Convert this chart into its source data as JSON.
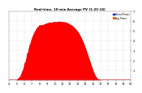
{
  "title": "Real-time, 10-min Average PV (1-25-14)",
  "legend_actual": "Actual Power",
  "legend_average": "Avg Power",
  "bg_color": "#ffffff",
  "plot_bg": "#ffffff",
  "grid_color": "#aaaaaa",
  "bar_color": "#ff0000",
  "avg_color": "#cc0000",
  "title_color": "#000000",
  "label_color": "#000000",
  "legend_color_1": "#0000ff",
  "legend_color_2": "#ff6600",
  "xlim": [
    0,
    144
  ],
  "ylim": [
    0,
    3.5
  ],
  "ytick_labels": [
    "1",
    "2",
    "3",
    "4",
    "5",
    "6",
    "7"
  ],
  "yticks": [
    0.5,
    1.0,
    1.5,
    2.0,
    2.5,
    3.0,
    3.5
  ],
  "values": [
    0.0,
    0.0,
    0.0,
    0.0,
    0.0,
    0.0,
    0.0,
    0.0,
    0.0,
    0.0,
    0.02,
    0.05,
    0.1,
    0.15,
    0.22,
    0.3,
    0.4,
    0.52,
    0.65,
    0.8,
    0.95,
    1.1,
    1.28,
    1.45,
    1.62,
    1.78,
    1.92,
    2.05,
    2.18,
    2.28,
    2.38,
    2.45,
    2.52,
    2.58,
    2.62,
    2.65,
    2.68,
    2.7,
    2.72,
    2.74,
    2.76,
    2.78,
    2.8,
    2.82,
    2.83,
    2.84,
    2.85,
    2.86,
    2.87,
    2.88,
    2.89,
    2.9,
    2.91,
    2.92,
    2.92,
    2.93,
    2.93,
    2.93,
    2.94,
    2.94,
    2.94,
    2.94,
    2.93,
    2.93,
    2.92,
    2.92,
    2.91,
    2.9,
    2.88,
    2.87,
    2.85,
    2.83,
    2.8,
    2.78,
    2.75,
    2.72,
    2.68,
    2.65,
    2.6,
    2.55,
    2.5,
    2.44,
    2.38,
    2.3,
    2.22,
    2.14,
    2.05,
    1.95,
    1.85,
    1.74,
    1.62,
    1.5,
    1.38,
    1.25,
    1.12,
    0.98,
    0.85,
    0.72,
    0.6,
    0.48,
    0.38,
    0.28,
    0.2,
    0.13,
    0.08,
    0.04,
    0.02,
    0.01,
    0.0,
    0.0,
    0.0,
    0.0,
    0.0,
    0.0,
    0.0,
    0.0,
    0.0,
    0.0,
    0.0,
    0.0,
    0.0,
    0.0,
    0.0,
    0.0,
    0.0,
    0.0,
    0.0,
    0.0,
    0.0,
    0.0,
    0.0,
    0.0,
    0.0,
    0.0,
    0.0,
    0.0,
    0.0,
    0.0,
    0.0,
    0.0,
    0.0,
    0.0,
    0.0,
    0.0
  ],
  "spiky_extra": [
    0.0,
    0.0,
    0.0,
    0.0,
    0.0,
    0.0,
    0.0,
    0.0,
    0.0,
    0.0,
    0.05,
    0.08,
    0.12,
    0.1,
    0.15,
    0.2,
    0.18,
    0.25,
    0.3,
    0.28,
    0.22,
    0.3,
    0.35,
    0.25,
    0.2,
    0.18,
    0.15,
    0.12,
    0.1,
    0.15,
    0.2,
    0.18,
    0.22,
    0.25,
    0.2,
    0.15,
    0.18,
    0.22,
    0.2,
    0.15,
    0.12,
    0.1,
    0.08,
    0.12,
    0.1,
    0.08,
    0.1,
    0.12,
    0.1,
    0.08,
    0.06,
    0.05,
    0.06,
    0.05,
    0.04,
    0.05,
    0.04,
    0.05,
    0.04,
    0.03,
    0.04,
    0.03,
    0.04,
    0.03,
    0.04,
    0.03,
    0.04,
    0.03,
    0.04,
    0.03,
    0.03,
    0.03,
    0.03,
    0.03,
    0.03,
    0.03,
    0.03,
    0.03,
    0.03,
    0.03,
    0.03,
    0.03,
    0.03,
    0.03,
    0.03,
    0.03,
    0.03,
    0.03,
    0.03,
    0.03,
    0.03,
    0.03,
    0.03,
    0.03,
    0.03,
    0.03,
    0.03,
    0.03,
    0.03,
    0.03,
    0.0,
    0.0,
    0.0,
    0.0,
    0.0,
    0.0,
    0.0,
    0.0,
    0.0,
    0.0,
    0.0,
    0.0,
    0.0,
    0.0,
    0.0,
    0.0,
    0.0,
    0.0,
    0.0,
    0.0,
    0.0,
    0.0,
    0.0,
    0.0,
    0.0,
    0.0,
    0.0,
    0.0,
    0.0,
    0.0,
    0.0,
    0.0,
    0.0,
    0.0,
    0.0,
    0.0,
    0.0,
    0.0,
    0.0,
    0.0,
    0.0,
    0.0,
    0.0,
    0.0
  ],
  "time_labels": [
    "4",
    "5",
    "6",
    "7",
    "8",
    "9",
    "10",
    "11",
    "12",
    "13",
    "14",
    "15",
    "16",
    "17",
    "18",
    "19",
    "20"
  ],
  "xtick_positions": [
    0,
    9,
    18,
    27,
    36,
    45,
    54,
    63,
    72,
    81,
    90,
    99,
    108,
    117,
    126,
    135,
    144
  ]
}
